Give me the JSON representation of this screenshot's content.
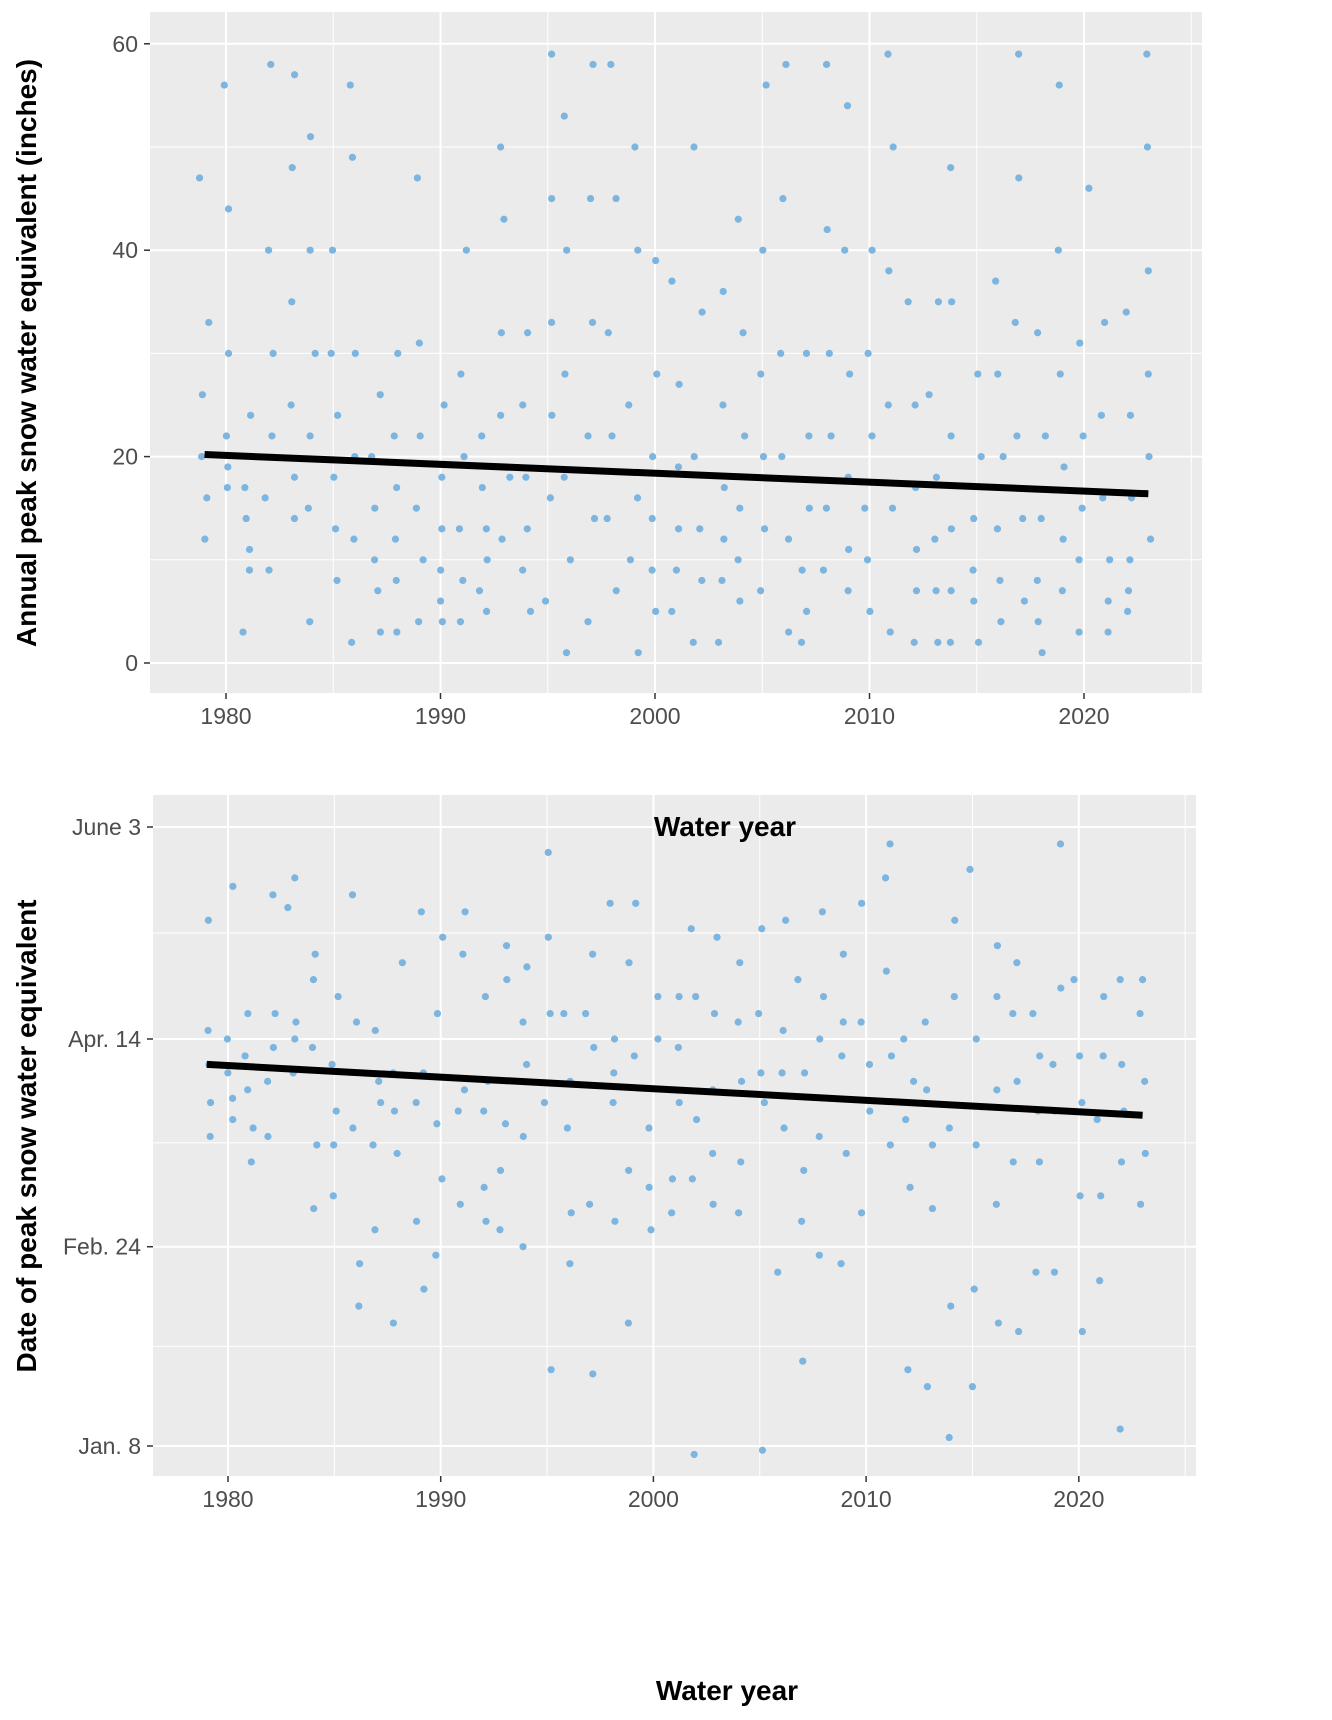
{
  "chart_data": [
    {
      "type": "scatter",
      "xlabel": "Water year",
      "ylabel": "Annual peak snow water equivalent (inches)",
      "xlim": [
        1977,
        2025
      ],
      "ylim": [
        -3,
        63
      ],
      "xticks": [
        1980,
        1990,
        2000,
        2010,
        2020
      ],
      "yticks": [
        0,
        20,
        40,
        60
      ],
      "grid": true,
      "point_color": "#7cb5e0",
      "trend_line": {
        "color": "#000000",
        "x": [
          1979,
          2023
        ],
        "y": [
          20.2,
          16.4
        ]
      },
      "years": [
        1979,
        1980,
        1981,
        1982,
        1983,
        1984,
        1985,
        1986,
        1987,
        1988,
        1989,
        1990,
        1991,
        1992,
        1993,
        1994,
        1995,
        1996,
        1997,
        1998,
        1999,
        2000,
        2001,
        2002,
        2003,
        2004,
        2005,
        2006,
        2007,
        2008,
        2009,
        2010,
        2011,
        2012,
        2013,
        2014,
        2015,
        2016,
        2017,
        2018,
        2019,
        2020,
        2021,
        2022,
        2023
      ],
      "values": [
        [
          47,
          33,
          26,
          20,
          16,
          12
        ],
        [
          56,
          44,
          30,
          22,
          19,
          17
        ],
        [
          24,
          17,
          14,
          11,
          9,
          3
        ],
        [
          58,
          40,
          30,
          22,
          16,
          9
        ],
        [
          57,
          48,
          35,
          25,
          18,
          14
        ],
        [
          51,
          40,
          30,
          22,
          15,
          4
        ],
        [
          40,
          30,
          24,
          18,
          13,
          8
        ],
        [
          56,
          49,
          30,
          20,
          12,
          2
        ],
        [
          26,
          20,
          15,
          10,
          7,
          3
        ],
        [
          30,
          22,
          17,
          12,
          8,
          3
        ],
        [
          47,
          31,
          22,
          15,
          10,
          4
        ],
        [
          25,
          18,
          13,
          9,
          6,
          4
        ],
        [
          40,
          28,
          20,
          13,
          8,
          4
        ],
        [
          22,
          17,
          13,
          10,
          7,
          5
        ],
        [
          50,
          43,
          32,
          24,
          18,
          12
        ],
        [
          32,
          25,
          18,
          13,
          9,
          5
        ],
        [
          59,
          45,
          33,
          24,
          16,
          6
        ],
        [
          53,
          40,
          28,
          18,
          10,
          1
        ],
        [
          58,
          45,
          33,
          22,
          14,
          4
        ],
        [
          58,
          45,
          32,
          22,
          14,
          7
        ],
        [
          50,
          40,
          25,
          16,
          10,
          1
        ],
        [
          39,
          28,
          20,
          14,
          9,
          5
        ],
        [
          37,
          27,
          19,
          13,
          9,
          5
        ],
        [
          50,
          34,
          20,
          13,
          8,
          2
        ],
        [
          36,
          25,
          17,
          12,
          8,
          2
        ],
        [
          43,
          32,
          22,
          15,
          10,
          6
        ],
        [
          56,
          40,
          28,
          20,
          13,
          7
        ],
        [
          58,
          45,
          30,
          20,
          12,
          3
        ],
        [
          30,
          22,
          15,
          9,
          5,
          2
        ],
        [
          58,
          42,
          30,
          22,
          15,
          9
        ],
        [
          54,
          40,
          28,
          18,
          11,
          7
        ],
        [
          40,
          30,
          22,
          15,
          10,
          5
        ],
        [
          59,
          50,
          38,
          25,
          15,
          3
        ],
        [
          35,
          25,
          17,
          11,
          7,
          2
        ],
        [
          35,
          26,
          18,
          12,
          7,
          2
        ],
        [
          48,
          35,
          22,
          13,
          7,
          2
        ],
        [
          28,
          20,
          14,
          9,
          6,
          2
        ],
        [
          37,
          28,
          20,
          13,
          8,
          4
        ],
        [
          59,
          47,
          33,
          22,
          14,
          6
        ],
        [
          32,
          22,
          14,
          8,
          4,
          1
        ],
        [
          56,
          40,
          28,
          19,
          12,
          7
        ],
        [
          46,
          31,
          22,
          15,
          10,
          3
        ],
        [
          33,
          24,
          16,
          10,
          6,
          3
        ],
        [
          34,
          24,
          16,
          10,
          7,
          5
        ],
        [
          59,
          50,
          38,
          28,
          20,
          12
        ]
      ]
    },
    {
      "type": "scatter",
      "xlabel": "Water year",
      "ylabel": "Date of peak snow water equivalent",
      "xlim": [
        1977,
        2025
      ],
      "ytick_labels": [
        "Jan. 8",
        "Feb. 24",
        "Apr. 14",
        "June 3"
      ],
      "ytick_dates": [
        "01-08",
        "02-24",
        "04-14",
        "06-03"
      ],
      "xticks": [
        1980,
        1990,
        2000,
        2010,
        2020
      ],
      "grid": true,
      "point_color": "#7cb5e0",
      "trend_line": {
        "color": "#000000",
        "x": [
          1979,
          2023
        ],
        "y": [
          "04-08",
          "03-27"
        ]
      },
      "years": [
        1979,
        1980,
        1981,
        1982,
        1983,
        1984,
        1985,
        1986,
        1987,
        1988,
        1989,
        1990,
        1991,
        1992,
        1993,
        1994,
        1995,
        1996,
        1997,
        1998,
        1999,
        2000,
        2001,
        2002,
        2003,
        2004,
        2005,
        2006,
        2007,
        2008,
        2009,
        2010,
        2011,
        2012,
        2013,
        2014,
        2015,
        2016,
        2017,
        2018,
        2019,
        2020,
        2021,
        2022,
        2023
      ],
      "dates": [
        [
          "05-12",
          "04-16",
          "04-08",
          "03-30",
          "03-22"
        ],
        [
          "05-20",
          "04-14",
          "04-06",
          "03-31",
          "03-26"
        ],
        [
          "04-20",
          "04-10",
          "04-02",
          "03-24",
          "03-16"
        ],
        [
          "05-18",
          "04-20",
          "04-12",
          "04-04",
          "03-22"
        ],
        [
          "05-22",
          "05-15",
          "04-18",
          "04-14",
          "04-06"
        ],
        [
          "05-04",
          "04-28",
          "04-12",
          "03-20",
          "03-05"
        ],
        [
          "04-24",
          "04-08",
          "03-28",
          "03-20",
          "03-08"
        ],
        [
          "05-18",
          "04-18",
          "03-24",
          "02-20",
          "02-10"
        ],
        [
          "04-16",
          "04-04",
          "03-30",
          "03-20",
          "02-28"
        ],
        [
          "05-02",
          "04-06",
          "03-28",
          "03-18",
          "02-06"
        ],
        [
          "05-14",
          "04-06",
          "03-30",
          "03-02",
          "02-14"
        ],
        [
          "05-08",
          "04-20",
          "03-25",
          "03-12",
          "02-22"
        ],
        [
          "05-14",
          "05-04",
          "04-02",
          "03-28",
          "03-06"
        ],
        [
          "04-24",
          "04-04",
          "03-28",
          "03-10",
          "03-02"
        ],
        [
          "05-06",
          "04-28",
          "03-25",
          "03-14",
          "02-28"
        ],
        [
          "05-01",
          "04-18",
          "04-08",
          "03-22",
          "02-24"
        ],
        [
          "05-28",
          "05-08",
          "04-20",
          "03-30",
          "01-26"
        ],
        [
          "04-20",
          "04-04",
          "03-24",
          "03-04",
          "02-20"
        ],
        [
          "05-04",
          "04-20",
          "04-12",
          "03-06",
          "01-25"
        ],
        [
          "05-16",
          "04-14",
          "04-06",
          "03-30",
          "03-02"
        ],
        [
          "05-16",
          "05-02",
          "04-10",
          "03-14",
          "02-06"
        ],
        [
          "04-24",
          "04-14",
          "03-24",
          "03-10",
          "02-28"
        ],
        [
          "04-24",
          "04-12",
          "03-30",
          "03-12",
          "03-04"
        ],
        [
          "05-10",
          "04-24",
          "03-26",
          "03-12",
          "01-06"
        ],
        [
          "05-08",
          "04-20",
          "04-02",
          "03-18",
          "03-06"
        ],
        [
          "05-02",
          "04-18",
          "04-04",
          "03-16",
          "03-04"
        ],
        [
          "05-10",
          "04-20",
          "04-06",
          "03-30",
          "01-07"
        ],
        [
          "05-12",
          "04-16",
          "04-06",
          "03-24",
          "02-18"
        ],
        [
          "04-28",
          "04-06",
          "03-14",
          "03-02",
          "01-28"
        ],
        [
          "05-14",
          "04-24",
          "04-14",
          "03-22",
          "02-22"
        ],
        [
          "05-04",
          "04-18",
          "04-10",
          "03-18",
          "02-20"
        ],
        [
          "05-16",
          "04-18",
          "04-08",
          "03-28",
          "03-04"
        ],
        [
          "05-30",
          "05-22",
          "04-30",
          "04-10",
          "03-20"
        ],
        [
          "04-14",
          "04-04",
          "03-26",
          "03-10",
          "01-26"
        ],
        [
          "04-18",
          "04-02",
          "03-20",
          "03-05",
          "01-22"
        ],
        [
          "05-12",
          "04-24",
          "03-24",
          "02-10",
          "01-10"
        ],
        [
          "05-24",
          "04-14",
          "03-20",
          "02-14",
          "01-22"
        ],
        [
          "05-06",
          "04-24",
          "04-02",
          "03-06",
          "02-06"
        ],
        [
          "05-02",
          "04-20",
          "04-04",
          "03-16",
          "02-04"
        ],
        [
          "04-20",
          "04-10",
          "03-28",
          "03-16",
          "02-18"
        ],
        [
          "05-30",
          "04-26",
          "04-08",
          "03-28",
          "02-18"
        ],
        [
          "04-28",
          "04-10",
          "03-30",
          "03-08",
          "02-04"
        ],
        [
          "04-24",
          "04-10",
          "03-26",
          "03-08",
          "02-16"
        ],
        [
          "04-28",
          "04-08",
          "03-28",
          "03-16",
          "01-12"
        ],
        [
          "04-28",
          "04-20",
          "04-04",
          "03-18",
          "03-06"
        ]
      ]
    }
  ]
}
